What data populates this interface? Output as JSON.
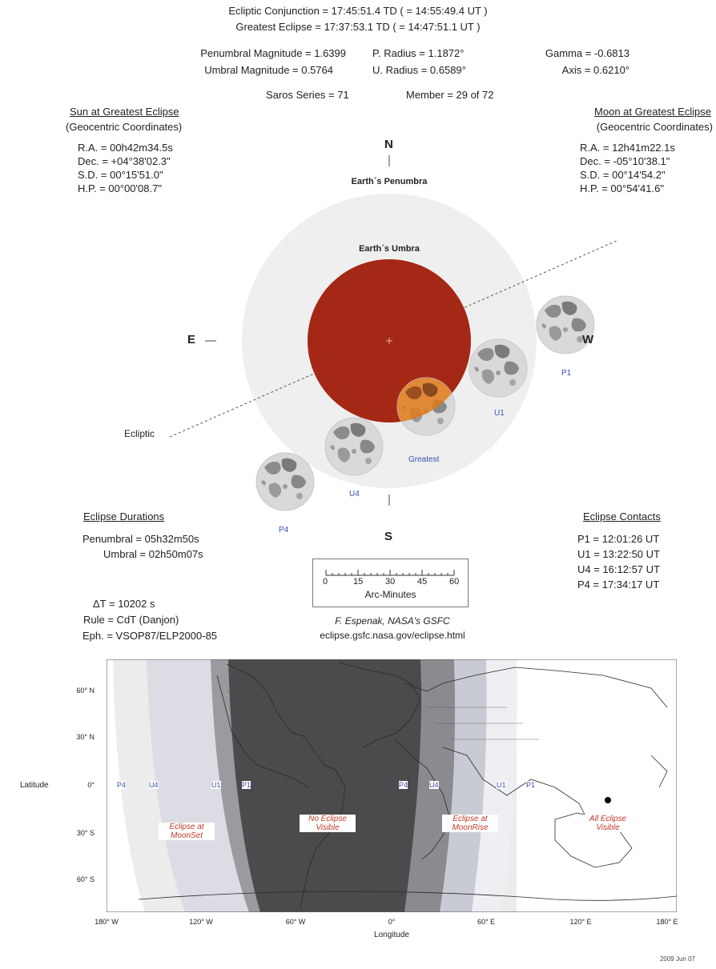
{
  "header": {
    "conjunction": "Ecliptic Conjunction = 17:45:51.4 TD   ( = 14:55:49.4 UT )",
    "greatest": "Greatest Eclipse = 17:37:53.1 TD   ( = 14:47:51.1 UT )",
    "pen_mag": "Penumbral Magnitude =  1.6399",
    "umb_mag": "Umbral Magnitude = 0.5764",
    "p_radius": "P. Radius = 1.1872°",
    "u_radius": "U. Radius = 0.6589°",
    "gamma": "Gamma = -0.6813",
    "axis": "Axis =  0.6210°",
    "saros": "Saros Series =  71",
    "member": "Member = 29 of 72"
  },
  "sun": {
    "title": "Sun at Greatest Eclipse",
    "subtitle": "(Geocentric Coordinates)",
    "ra": "R.A. =  00h42m34.5s",
    "dec": "Dec. = +04°38'02.3\"",
    "sd": "S.D. =  00°15'51.0\"",
    "hp": "H.P. =  00°00'08.7\""
  },
  "moon": {
    "title": "Moon at Greatest Eclipse",
    "subtitle": "(Geocentric Coordinates)",
    "ra": "R.A. =  12h41m22.1s",
    "dec": "Dec. = -05°10'38.1\"",
    "sd": "S.D. =  00°14'54.2\"",
    "hp": "H.P. =  00°54'41.6\""
  },
  "diagram": {
    "north": "N",
    "south": "S",
    "east": "E",
    "west": "W",
    "penumbra_label": "Earth´s Penumbra",
    "umbra_label": "Earth´s Umbra",
    "ecliptic_label": "Ecliptic",
    "p1": "P1",
    "u1": "U1",
    "greatest": "Greatest",
    "u4": "U4",
    "p4": "P4",
    "colors": {
      "penumbra": "#efefef",
      "umbra": "#a52716",
      "moon_shadow": "#e07a1a"
    }
  },
  "durations": {
    "title": "Eclipse Durations",
    "penumbral": "Penumbral = 05h32m50s",
    "umbral": "Umbral = 02h50m07s"
  },
  "contacts": {
    "title": "Eclipse Contacts",
    "p1": "P1 = 12:01:26 UT",
    "u1": "U1 = 13:22:50 UT",
    "u4": "U4 = 16:12:57 UT",
    "p4": "P4 = 17:34:17 UT"
  },
  "scale": {
    "ticks": [
      "0",
      "15",
      "30",
      "45",
      "60"
    ],
    "label": "Arc-Minutes"
  },
  "misc": {
    "delta_t": "ΔT =    10202 s",
    "rule": "Rule = CdT (Danjon)",
    "eph": "Eph. = VSOP87/ELP2000-85",
    "credit": "F. Espenak, NASA's GSFC",
    "url": "eclipse.gsfc.nasa.gov/eclipse.html",
    "date": "2009 Jun 07"
  },
  "map": {
    "lat_label": "Latitude",
    "lon_label": "Longitude",
    "lat_ticks": [
      "60° N",
      "30° N",
      "0°",
      "30° S",
      "60° S"
    ],
    "lon_ticks": [
      "180° W",
      "120° W",
      "60° W",
      "0°",
      "60° E",
      "120° E",
      "180° E"
    ],
    "contact_labels": [
      "P4",
      "U4",
      "U1",
      "P1",
      "P4",
      "U4",
      "U1",
      "P1"
    ],
    "regions": {
      "moonset": [
        "Eclipse at",
        "MoonSet"
      ],
      "none": [
        "No Eclipse",
        "Visible"
      ],
      "moonrise": [
        "Eclipse at",
        "MoonRise"
      ],
      "all": [
        "All Eclipse",
        "Visible"
      ]
    }
  }
}
